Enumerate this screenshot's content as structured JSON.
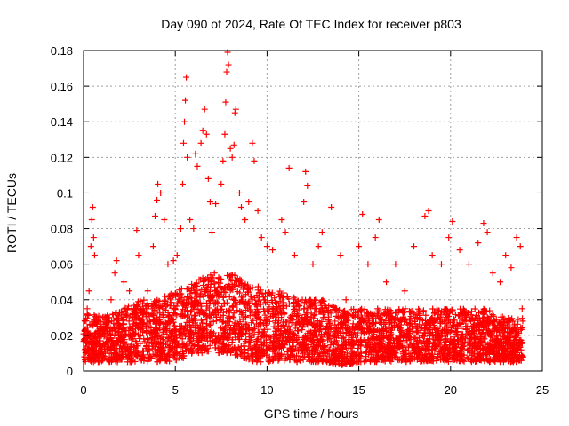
{
  "chart_data": {
    "type": "scatter",
    "title": "Day 090 of 2024, Rate Of TEC Index for receiver p803",
    "xlabel": "GPS time / hours",
    "ylabel": "ROTI / TECUs",
    "xlim": [
      0,
      25
    ],
    "ylim": [
      0,
      0.18
    ],
    "xticks": [
      "0",
      "5",
      "10",
      "15",
      "20",
      "25"
    ],
    "yticks": [
      "0",
      "0.02",
      "0.04",
      "0.06",
      "0.08",
      "0.1",
      "0.12",
      "0.14",
      "0.16",
      "0.18"
    ],
    "grid": true,
    "marker": "+",
    "color": "#ff0000",
    "series": [
      {
        "name": "ROTI",
        "points": [
          [
            0.1,
            0.02
          ],
          [
            0.2,
            0.035
          ],
          [
            0.3,
            0.045
          ],
          [
            0.4,
            0.07
          ],
          [
            0.45,
            0.085
          ],
          [
            0.5,
            0.092
          ],
          [
            0.55,
            0.075
          ],
          [
            0.6,
            0.065
          ],
          [
            0.7,
            0.03
          ],
          [
            0.9,
            0.03
          ],
          [
            1.2,
            0.025
          ],
          [
            1.5,
            0.04
          ],
          [
            1.7,
            0.055
          ],
          [
            1.8,
            0.062
          ],
          [
            2.2,
            0.05
          ],
          [
            2.5,
            0.045
          ],
          [
            2.9,
            0.079
          ],
          [
            3.0,
            0.065
          ],
          [
            3.5,
            0.045
          ],
          [
            3.8,
            0.07
          ],
          [
            3.9,
            0.087
          ],
          [
            4.0,
            0.096
          ],
          [
            4.05,
            0.105
          ],
          [
            4.2,
            0.1
          ],
          [
            4.4,
            0.085
          ],
          [
            4.6,
            0.06
          ],
          [
            4.9,
            0.062
          ],
          [
            5.1,
            0.065
          ],
          [
            5.3,
            0.08
          ],
          [
            5.4,
            0.105
          ],
          [
            5.45,
            0.128
          ],
          [
            5.5,
            0.14
          ],
          [
            5.55,
            0.152
          ],
          [
            5.6,
            0.165
          ],
          [
            5.65,
            0.12
          ],
          [
            5.8,
            0.085
          ],
          [
            6.0,
            0.08
          ],
          [
            6.1,
            0.122
          ],
          [
            6.2,
            0.115
          ],
          [
            6.4,
            0.128
          ],
          [
            6.5,
            0.135
          ],
          [
            6.6,
            0.147
          ],
          [
            6.7,
            0.133
          ],
          [
            6.8,
            0.108
          ],
          [
            6.9,
            0.095
          ],
          [
            7.0,
            0.078
          ],
          [
            7.2,
            0.094
          ],
          [
            7.5,
            0.105
          ],
          [
            7.6,
            0.118
          ],
          [
            7.7,
            0.133
          ],
          [
            7.75,
            0.151
          ],
          [
            7.8,
            0.168
          ],
          [
            7.85,
            0.179
          ],
          [
            7.9,
            0.172
          ],
          [
            8.0,
            0.125
          ],
          [
            8.1,
            0.12
          ],
          [
            8.2,
            0.127
          ],
          [
            8.25,
            0.145
          ],
          [
            8.3,
            0.147
          ],
          [
            8.5,
            0.1
          ],
          [
            8.6,
            0.092
          ],
          [
            8.8,
            0.085
          ],
          [
            9.0,
            0.095
          ],
          [
            9.2,
            0.128
          ],
          [
            9.3,
            0.118
          ],
          [
            9.5,
            0.09
          ],
          [
            9.7,
            0.075
          ],
          [
            10.0,
            0.07
          ],
          [
            10.3,
            0.068
          ],
          [
            10.8,
            0.085
          ],
          [
            11.0,
            0.078
          ],
          [
            11.2,
            0.114
          ],
          [
            11.5,
            0.065
          ],
          [
            12.0,
            0.095
          ],
          [
            12.1,
            0.112
          ],
          [
            12.2,
            0.104
          ],
          [
            12.5,
            0.06
          ],
          [
            12.8,
            0.07
          ],
          [
            13.0,
            0.078
          ],
          [
            13.5,
            0.092
          ],
          [
            14.0,
            0.065
          ],
          [
            14.3,
            0.04
          ],
          [
            14.7,
            0.02
          ],
          [
            15.0,
            0.07
          ],
          [
            15.2,
            0.088
          ],
          [
            15.5,
            0.06
          ],
          [
            15.9,
            0.075
          ],
          [
            16.1,
            0.085
          ],
          [
            16.5,
            0.05
          ],
          [
            17.0,
            0.06
          ],
          [
            17.5,
            0.045
          ],
          [
            18.0,
            0.07
          ],
          [
            18.6,
            0.087
          ],
          [
            18.8,
            0.09
          ],
          [
            19.0,
            0.065
          ],
          [
            19.5,
            0.06
          ],
          [
            19.9,
            0.075
          ],
          [
            20.1,
            0.084
          ],
          [
            20.5,
            0.068
          ],
          [
            21.0,
            0.06
          ],
          [
            21.5,
            0.072
          ],
          [
            21.8,
            0.083
          ],
          [
            22.0,
            0.078
          ],
          [
            22.3,
            0.055
          ],
          [
            22.7,
            0.05
          ],
          [
            23.0,
            0.065
          ],
          [
            23.3,
            0.058
          ],
          [
            23.6,
            0.075
          ],
          [
            23.8,
            0.07
          ],
          [
            23.9,
            0.035
          ]
        ]
      }
    ],
    "envelope": {
      "x": [
        0,
        1,
        2,
        3,
        4,
        5,
        6,
        7,
        8,
        9,
        10,
        11,
        12,
        13,
        14,
        15,
        16,
        17,
        18,
        19,
        20,
        21,
        22,
        23,
        24
      ],
      "lower": [
        0.005,
        0.005,
        0.005,
        0.005,
        0.005,
        0.005,
        0.01,
        0.01,
        0.01,
        0.005,
        0.005,
        0.005,
        0.005,
        0.005,
        0.003,
        0.005,
        0.005,
        0.005,
        0.005,
        0.005,
        0.005,
        0.005,
        0.005,
        0.005,
        0.005
      ],
      "upper": [
        0.035,
        0.03,
        0.035,
        0.04,
        0.04,
        0.045,
        0.05,
        0.055,
        0.055,
        0.05,
        0.045,
        0.045,
        0.04,
        0.04,
        0.035,
        0.035,
        0.035,
        0.035,
        0.035,
        0.035,
        0.035,
        0.035,
        0.035,
        0.03,
        0.03
      ]
    }
  }
}
